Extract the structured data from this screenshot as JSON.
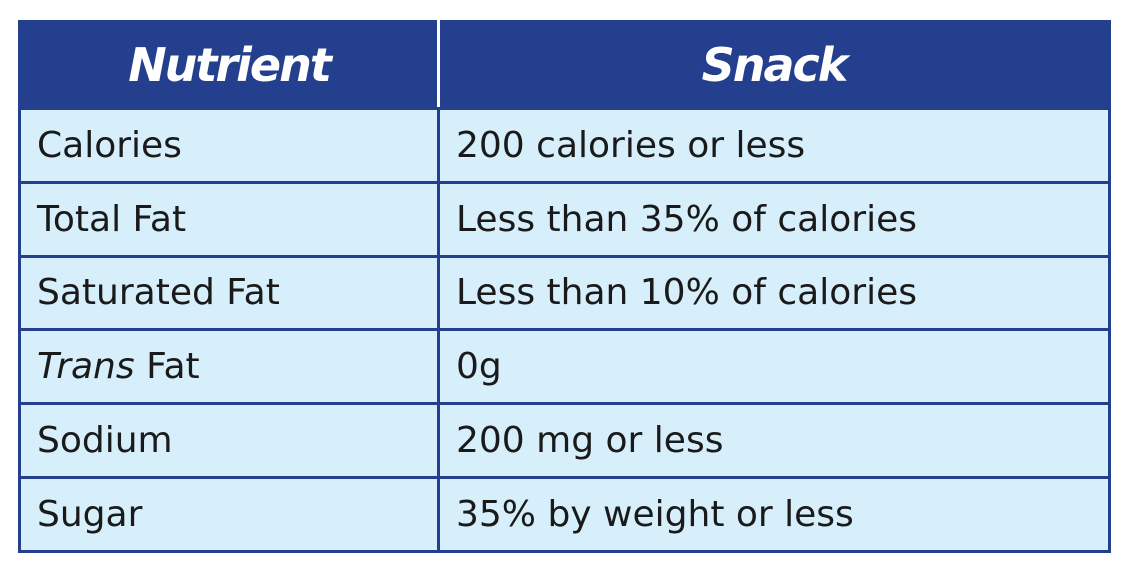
{
  "table": {
    "headers": [
      "Nutrient",
      "Snack"
    ],
    "rows": [
      {
        "nutrient": "Calories",
        "snack": "200 calories or less"
      },
      {
        "nutrient": "Total Fat",
        "snack": "Less than 35% of calories"
      },
      {
        "nutrient": "Saturated Fat",
        "snack": "Less than 10% of calories"
      },
      {
        "nutrient_italic": "Trans",
        "nutrient_rest": " Fat",
        "snack": "0g"
      },
      {
        "nutrient": "Sodium",
        "snack": "200 mg or less"
      },
      {
        "nutrient": "Sugar",
        "snack": "35% by weight or less"
      }
    ]
  },
  "colors": {
    "header_bg": "#233f8d",
    "cell_bg": "#d6effb",
    "border": "#233f8d"
  }
}
